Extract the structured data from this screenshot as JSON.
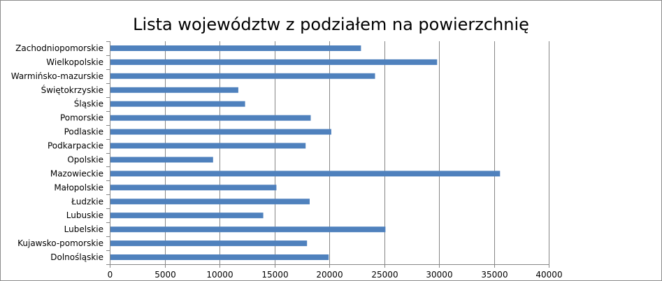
{
  "chart_data": {
    "type": "bar",
    "orientation": "horizontal",
    "title": "Lista województw z podziałem na powierzchnię",
    "categories": [
      "Dolnośląskie",
      "Kujawsko-pomorskie",
      "Lubelskie",
      "Lubuskie",
      "Łudzkie",
      "Małopolskie",
      "Mazowieckie",
      "Opolskie",
      "Podkarpackie",
      "Podlaskie",
      "Pomorskie",
      "Śląskie",
      "Świętokrzyskie",
      "Warmińsko-mazurskie",
      "Wielkopolskie",
      "Zachodniopomorskie"
    ],
    "values": [
      19947,
      17972,
      25122,
      13988,
      18219,
      15183,
      35558,
      9412,
      17846,
      20187,
      18310,
      12333,
      11711,
      24173,
      29826,
      22892
    ],
    "xlim": [
      0,
      40000
    ],
    "xticks": [
      0,
      5000,
      10000,
      15000,
      20000,
      25000,
      30000,
      35000,
      40000
    ],
    "xtick_labels": [
      "0",
      "5000",
      "10000",
      "15000",
      "20000",
      "25000",
      "30000",
      "35000",
      "40000"
    ],
    "grid": "vertical",
    "legend": "none",
    "bar_color": "#4f81bd",
    "grid_color": "#868686"
  }
}
